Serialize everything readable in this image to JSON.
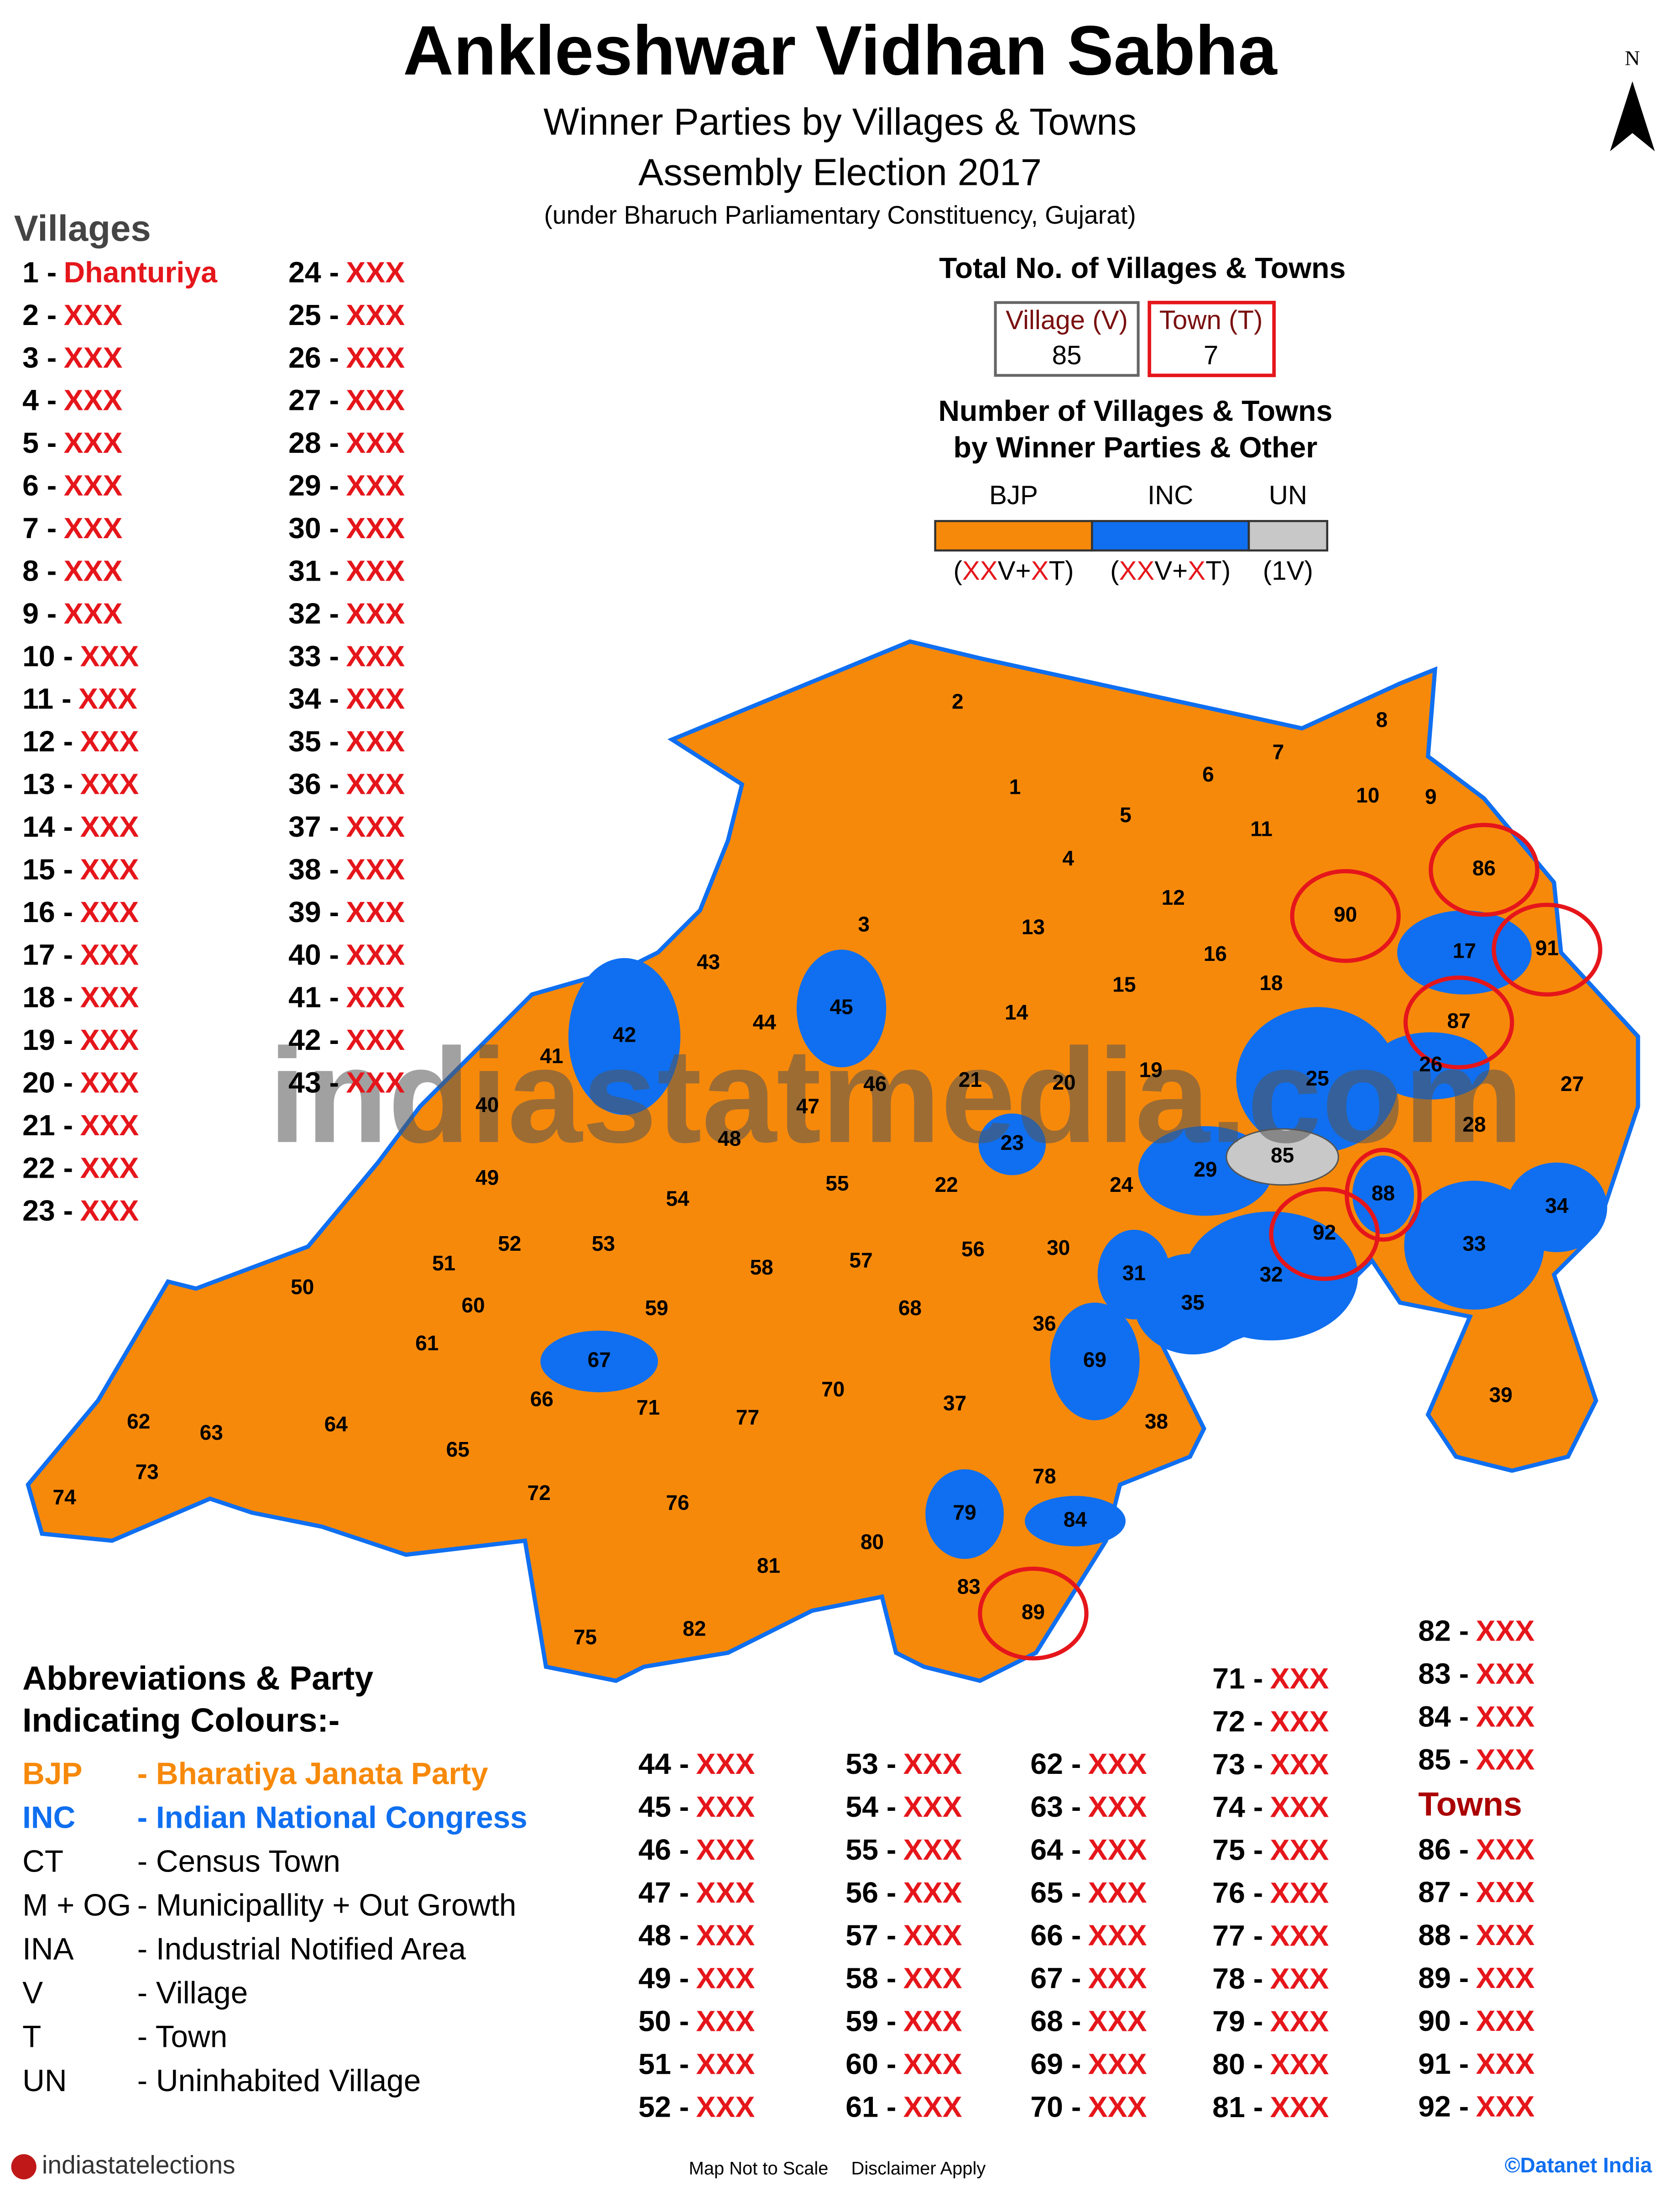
{
  "header": {
    "title": "Ankleshwar Vidhan Sabha",
    "subtitle": "Winner Parties by Villages & Towns",
    "election": "Assembly Election 2017",
    "note": "(under Bharuch Parliamentary Constituency, Gujarat)",
    "north": "N"
  },
  "watermark": "indiastatmedia.com",
  "villages_heading": "Villages",
  "towns_heading": "Towns",
  "villages": [
    {
      "no": "1 -",
      "name": "Dhanturiya"
    },
    {
      "no": "2 -",
      "name": "XXX"
    },
    {
      "no": "3 -",
      "name": "XXX"
    },
    {
      "no": "4 -",
      "name": "XXX"
    },
    {
      "no": "5 -",
      "name": "XXX"
    },
    {
      "no": "6 -",
      "name": "XXX"
    },
    {
      "no": "7 -",
      "name": "XXX"
    },
    {
      "no": "8 -",
      "name": "XXX"
    },
    {
      "no": "9 -",
      "name": "XXX"
    },
    {
      "no": "10 -",
      "name": "XXX"
    },
    {
      "no": "11 -",
      "name": "XXX"
    },
    {
      "no": "12 -",
      "name": "XXX"
    },
    {
      "no": "13 -",
      "name": "XXX"
    },
    {
      "no": "14 -",
      "name": "XXX"
    },
    {
      "no": "15 -",
      "name": "XXX"
    },
    {
      "no": "16 -",
      "name": "XXX"
    },
    {
      "no": "17 -",
      "name": "XXX"
    },
    {
      "no": "18 -",
      "name": "XXX"
    },
    {
      "no": "19 -",
      "name": "XXX"
    },
    {
      "no": "20 -",
      "name": "XXX"
    },
    {
      "no": "21 -",
      "name": "XXX"
    },
    {
      "no": "22 -",
      "name": "XXX"
    },
    {
      "no": "23 -",
      "name": "XXX"
    },
    {
      "no": "24 -",
      "name": "XXX"
    },
    {
      "no": "25 -",
      "name": "XXX"
    },
    {
      "no": "26 -",
      "name": "XXX"
    },
    {
      "no": "27 -",
      "name": "XXX"
    },
    {
      "no": "28 -",
      "name": "XXX"
    },
    {
      "no": "29 -",
      "name": "XXX"
    },
    {
      "no": "30 -",
      "name": "XXX"
    },
    {
      "no": "31 -",
      "name": "XXX"
    },
    {
      "no": "32 -",
      "name": "XXX"
    },
    {
      "no": "33 -",
      "name": "XXX"
    },
    {
      "no": "34 -",
      "name": "XXX"
    },
    {
      "no": "35 -",
      "name": "XXX"
    },
    {
      "no": "36 -",
      "name": "XXX"
    },
    {
      "no": "37 -",
      "name": "XXX"
    },
    {
      "no": "38 -",
      "name": "XXX"
    },
    {
      "no": "39 -",
      "name": "XXX"
    },
    {
      "no": "40 -",
      "name": "XXX"
    },
    {
      "no": "41 -",
      "name": "XXX"
    },
    {
      "no": "42 -",
      "name": "XXX"
    },
    {
      "no": "43 -",
      "name": "XXX"
    },
    {
      "no": "44 -",
      "name": "XXX"
    },
    {
      "no": "45 -",
      "name": "XXX"
    },
    {
      "no": "46 -",
      "name": "XXX"
    },
    {
      "no": "47 -",
      "name": "XXX"
    },
    {
      "no": "48 -",
      "name": "XXX"
    },
    {
      "no": "49 -",
      "name": "XXX"
    },
    {
      "no": "50 -",
      "name": "XXX"
    },
    {
      "no": "51 -",
      "name": "XXX"
    },
    {
      "no": "52 -",
      "name": "XXX"
    },
    {
      "no": "53 -",
      "name": "XXX"
    },
    {
      "no": "54 -",
      "name": "XXX"
    },
    {
      "no": "55 -",
      "name": "XXX"
    },
    {
      "no": "56 -",
      "name": "XXX"
    },
    {
      "no": "57 -",
      "name": "XXX"
    },
    {
      "no": "58 -",
      "name": "XXX"
    },
    {
      "no": "59 -",
      "name": "XXX"
    },
    {
      "no": "60 -",
      "name": "XXX"
    },
    {
      "no": "61 -",
      "name": "XXX"
    },
    {
      "no": "62 -",
      "name": "XXX"
    },
    {
      "no": "63 -",
      "name": "XXX"
    },
    {
      "no": "64 -",
      "name": "XXX"
    },
    {
      "no": "65 -",
      "name": "XXX"
    },
    {
      "no": "66 -",
      "name": "XXX"
    },
    {
      "no": "67 -",
      "name": "XXX"
    },
    {
      "no": "68 -",
      "name": "XXX"
    },
    {
      "no": "69 -",
      "name": "XXX"
    },
    {
      "no": "70 -",
      "name": "XXX"
    },
    {
      "no": "71 -",
      "name": "XXX"
    },
    {
      "no": "72 -",
      "name": "XXX"
    },
    {
      "no": "73 -",
      "name": "XXX"
    },
    {
      "no": "74 -",
      "name": "XXX"
    },
    {
      "no": "75 -",
      "name": "XXX"
    },
    {
      "no": "76 -",
      "name": "XXX"
    },
    {
      "no": "77 -",
      "name": "XXX"
    },
    {
      "no": "78 -",
      "name": "XXX"
    },
    {
      "no": "79 -",
      "name": "XXX"
    },
    {
      "no": "80 -",
      "name": "XXX"
    },
    {
      "no": "81 -",
      "name": "XXX"
    },
    {
      "no": "82 -",
      "name": "XXX"
    },
    {
      "no": "83 -",
      "name": "XXX"
    },
    {
      "no": "84 -",
      "name": "XXX"
    },
    {
      "no": "85 -",
      "name": "XXX"
    }
  ],
  "towns": [
    {
      "no": "86 -",
      "name": "XXX"
    },
    {
      "no": "87 -",
      "name": "XXX"
    },
    {
      "no": "88 -",
      "name": "XXX"
    },
    {
      "no": "89 -",
      "name": "XXX"
    },
    {
      "no": "90 -",
      "name": "XXX"
    },
    {
      "no": "91 -",
      "name": "XXX"
    },
    {
      "no": "92 -",
      "name": "XXX"
    }
  ],
  "totals": {
    "title": "Total No. of Villages & Towns",
    "village": {
      "label": "Village (V)",
      "value": 85
    },
    "town": {
      "label": "Town (T)",
      "value": 7
    }
  },
  "winners": {
    "title": [
      "Number of Villages & Towns",
      "by Winner Parties & Other"
    ],
    "parties": [
      {
        "name": "BJP",
        "color": "#f7890a",
        "count": [
          "(",
          "XX",
          "V+",
          "X",
          "T)"
        ]
      },
      {
        "name": "INC",
        "color": "#0f6ff0",
        "count": [
          "(",
          "XX",
          "V+",
          "X",
          "T)"
        ]
      },
      {
        "name": "UN",
        "color": "#c8c8c8",
        "count": [
          "(1V)"
        ]
      }
    ]
  },
  "abbreviations": {
    "heading": [
      "Abbreviations & Party",
      "Indicating Colours:-"
    ],
    "items": [
      {
        "abbr": "BJP",
        "desc": "- Bharatiya Janata Party",
        "color": "#f7890a"
      },
      {
        "abbr": "INC",
        "desc": "- Indian National Congress",
        "color": "#0f6ff0"
      },
      {
        "abbr": "CT",
        "desc": "- Census Town"
      },
      {
        "abbr": "M + OG",
        "desc": "- Municipallity + Out Growth"
      },
      {
        "abbr": "INA",
        "desc": "- Industrial Notified Area"
      },
      {
        "abbr": "V",
        "desc": "- Village"
      },
      {
        "abbr": "T",
        "desc": "- Town"
      },
      {
        "abbr": "UN",
        "desc": "- Uninhabited Village"
      }
    ]
  },
  "map": {
    "colors": {
      "BJP": "#f7890a",
      "INC": "#0f6ff0",
      "UN": "#c8c8c8"
    },
    "town_outline": "#e5161b",
    "regions": [
      {
        "label": "1",
        "party": "BJP",
        "kind": "V"
      },
      {
        "label": "2",
        "party": "BJP",
        "kind": "V"
      },
      {
        "label": "3",
        "party": "BJP",
        "kind": "V"
      },
      {
        "label": "4",
        "party": "BJP",
        "kind": "V"
      },
      {
        "label": "5",
        "party": "BJP",
        "kind": "V"
      },
      {
        "label": "6",
        "party": "BJP",
        "kind": "V"
      },
      {
        "label": "7",
        "party": "BJP",
        "kind": "V"
      },
      {
        "label": "8",
        "party": "BJP",
        "kind": "V"
      },
      {
        "label": "9",
        "party": "BJP",
        "kind": "V"
      },
      {
        "label": "10",
        "party": "BJP",
        "kind": "V"
      },
      {
        "label": "11",
        "party": "BJP",
        "kind": "V"
      },
      {
        "label": "12",
        "party": "BJP",
        "kind": "V"
      },
      {
        "label": "13",
        "party": "BJP",
        "kind": "V"
      },
      {
        "label": "14",
        "party": "BJP",
        "kind": "V"
      },
      {
        "label": "15",
        "party": "BJP",
        "kind": "V"
      },
      {
        "label": "16",
        "party": "BJP",
        "kind": "V"
      },
      {
        "label": "17",
        "party": "INC",
        "kind": "V"
      },
      {
        "label": "18",
        "party": "BJP",
        "kind": "V"
      },
      {
        "label": "19",
        "party": "BJP",
        "kind": "V"
      },
      {
        "label": "20",
        "party": "BJP",
        "kind": "V"
      },
      {
        "label": "21",
        "party": "BJP",
        "kind": "V"
      },
      {
        "label": "22",
        "party": "BJP",
        "kind": "V"
      },
      {
        "label": "23",
        "party": "INC",
        "kind": "V"
      },
      {
        "label": "24",
        "party": "BJP",
        "kind": "V"
      },
      {
        "label": "25",
        "party": "INC",
        "kind": "V"
      },
      {
        "label": "26",
        "party": "INC",
        "kind": "V"
      },
      {
        "label": "27",
        "party": "BJP",
        "kind": "V"
      },
      {
        "label": "28",
        "party": "BJP",
        "kind": "V"
      },
      {
        "label": "29",
        "party": "INC",
        "kind": "V"
      },
      {
        "label": "30",
        "party": "BJP",
        "kind": "V"
      },
      {
        "label": "31",
        "party": "INC",
        "kind": "V"
      },
      {
        "label": "32",
        "party": "INC",
        "kind": "V"
      },
      {
        "label": "33",
        "party": "INC",
        "kind": "V"
      },
      {
        "label": "34",
        "party": "INC",
        "kind": "V"
      },
      {
        "label": "35",
        "party": "INC",
        "kind": "V"
      },
      {
        "label": "36",
        "party": "BJP",
        "kind": "V"
      },
      {
        "label": "37",
        "party": "BJP",
        "kind": "V"
      },
      {
        "label": "38",
        "party": "BJP",
        "kind": "V"
      },
      {
        "label": "39",
        "party": "BJP",
        "kind": "V"
      },
      {
        "label": "40",
        "party": "BJP",
        "kind": "V"
      },
      {
        "label": "41",
        "party": "BJP",
        "kind": "V"
      },
      {
        "label": "42",
        "party": "INC",
        "kind": "V"
      },
      {
        "label": "43",
        "party": "BJP",
        "kind": "V"
      },
      {
        "label": "44",
        "party": "BJP",
        "kind": "V"
      },
      {
        "label": "45",
        "party": "INC",
        "kind": "V"
      },
      {
        "label": "46",
        "party": "BJP",
        "kind": "V"
      },
      {
        "label": "47",
        "party": "BJP",
        "kind": "V"
      },
      {
        "label": "48",
        "party": "BJP",
        "kind": "V"
      },
      {
        "label": "49",
        "party": "BJP",
        "kind": "V"
      },
      {
        "label": "50",
        "party": "BJP",
        "kind": "V"
      },
      {
        "label": "51",
        "party": "BJP",
        "kind": "V"
      },
      {
        "label": "52",
        "party": "BJP",
        "kind": "V"
      },
      {
        "label": "53",
        "party": "BJP",
        "kind": "V"
      },
      {
        "label": "54",
        "party": "BJP",
        "kind": "V"
      },
      {
        "label": "55",
        "party": "BJP",
        "kind": "V"
      },
      {
        "label": "56",
        "party": "BJP",
        "kind": "V"
      },
      {
        "label": "57",
        "party": "BJP",
        "kind": "V"
      },
      {
        "label": "58",
        "party": "BJP",
        "kind": "V"
      },
      {
        "label": "59",
        "party": "BJP",
        "kind": "V"
      },
      {
        "label": "60",
        "party": "BJP",
        "kind": "V"
      },
      {
        "label": "61",
        "party": "BJP",
        "kind": "V"
      },
      {
        "label": "62",
        "party": "BJP",
        "kind": "V"
      },
      {
        "label": "63",
        "party": "BJP",
        "kind": "V"
      },
      {
        "label": "64",
        "party": "BJP",
        "kind": "V"
      },
      {
        "label": "65",
        "party": "BJP",
        "kind": "V"
      },
      {
        "label": "66",
        "party": "BJP",
        "kind": "V"
      },
      {
        "label": "67",
        "party": "INC",
        "kind": "V"
      },
      {
        "label": "68",
        "party": "BJP",
        "kind": "V"
      },
      {
        "label": "69",
        "party": "INC",
        "kind": "V"
      },
      {
        "label": "70",
        "party": "BJP",
        "kind": "V"
      },
      {
        "label": "71",
        "party": "BJP",
        "kind": "V"
      },
      {
        "label": "72",
        "party": "BJP",
        "kind": "V"
      },
      {
        "label": "73",
        "party": "BJP",
        "kind": "V"
      },
      {
        "label": "74",
        "party": "BJP",
        "kind": "V"
      },
      {
        "label": "75",
        "party": "BJP",
        "kind": "V"
      },
      {
        "label": "76",
        "party": "BJP",
        "kind": "V"
      },
      {
        "label": "77",
        "party": "BJP",
        "kind": "V"
      },
      {
        "label": "78",
        "party": "BJP",
        "kind": "V"
      },
      {
        "label": "79",
        "party": "INC",
        "kind": "V"
      },
      {
        "label": "80",
        "party": "BJP",
        "kind": "V"
      },
      {
        "label": "81",
        "party": "BJP",
        "kind": "V"
      },
      {
        "label": "82",
        "party": "BJP",
        "kind": "V"
      },
      {
        "label": "83",
        "party": "BJP",
        "kind": "V"
      },
      {
        "label": "84",
        "party": "INC",
        "kind": "V"
      },
      {
        "label": "85",
        "party": "UN",
        "kind": "V"
      },
      {
        "label": "86",
        "party": "BJP",
        "kind": "T"
      },
      {
        "label": "87",
        "party": "BJP",
        "kind": "T"
      },
      {
        "label": "88",
        "party": "INC",
        "kind": "T"
      },
      {
        "label": "89",
        "party": "BJP",
        "kind": "T"
      },
      {
        "label": "90",
        "party": "BJP",
        "kind": "T"
      },
      {
        "label": "91",
        "party": "BJP",
        "kind": "T"
      },
      {
        "label": "92",
        "party": "BJP",
        "kind": "T"
      }
    ]
  },
  "footer": {
    "logo": "indiastatelections",
    "scale": "Map Not to Scale",
    "disclaimer": "Disclaimer Apply",
    "copyright": "©Datanet India"
  }
}
